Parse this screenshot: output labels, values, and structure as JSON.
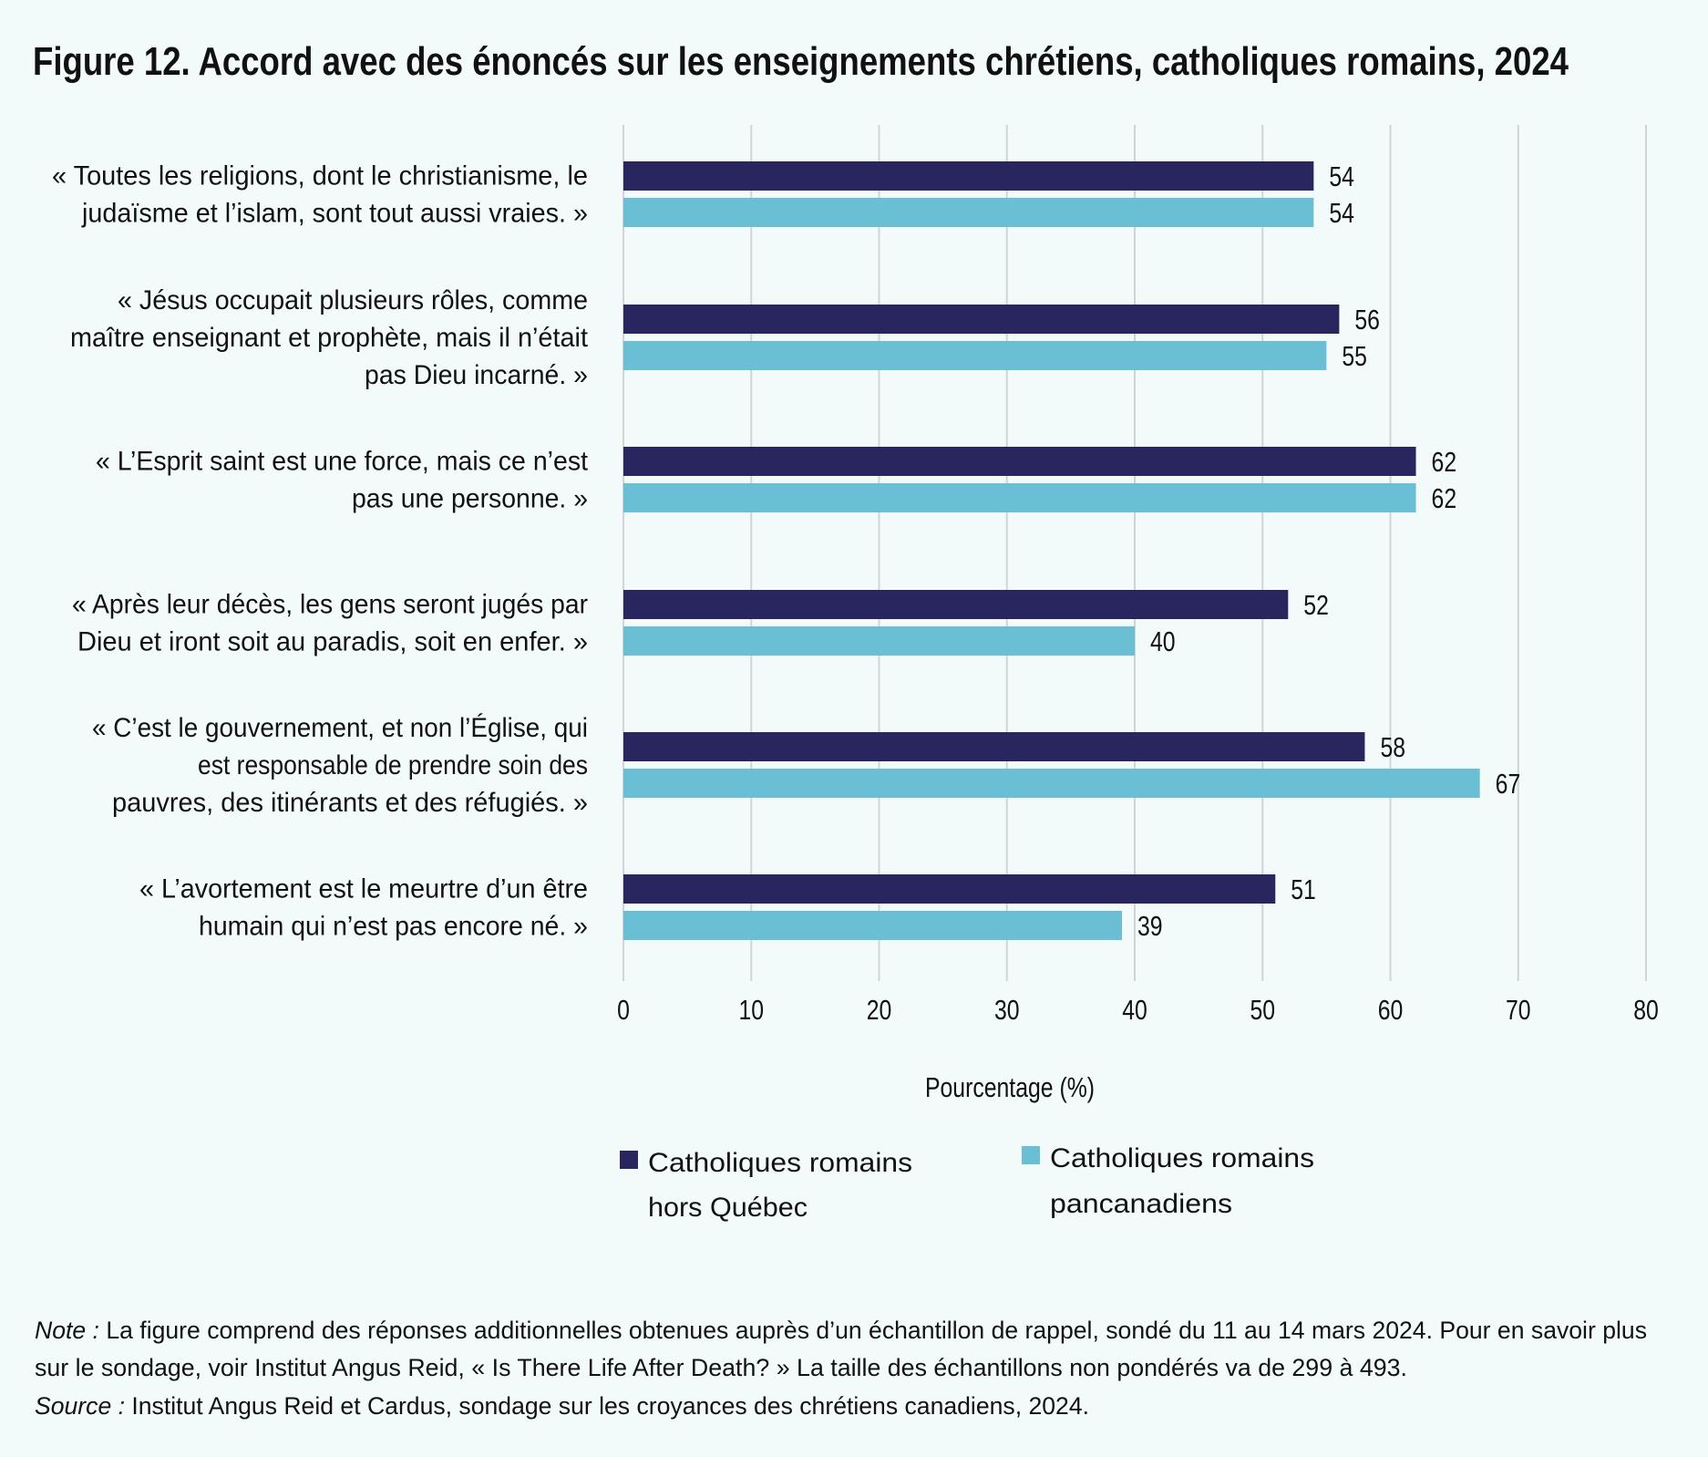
{
  "chart_data": {
    "type": "bar",
    "orientation": "horizontal",
    "title": "Figure 12. Accord avec des énoncés sur les enseignements chrétiens, catholiques romains, 2024",
    "xlabel": "Pourcentage (%)",
    "ylabel": "",
    "xlim": [
      0,
      80
    ],
    "xticks": [
      "0",
      "10",
      "20",
      "30",
      "40",
      "50",
      "60",
      "70",
      "80"
    ],
    "grid": "vertical",
    "legend_placement": "bottom",
    "categories": [
      [
        "« Toutes les religions, dont le christianisme, le",
        "judaïsme et l’islam, sont tout aussi vraies. »"
      ],
      [
        "« Jésus occupait plusieurs rôles, comme",
        "maître enseignant et prophète, mais il n’était",
        "pas Dieu incarné. »"
      ],
      [
        "« L’Esprit saint est une force, mais ce n’est",
        "pas une personne. »"
      ],
      [
        "« Après leur décès, les gens seront jugés par",
        "Dieu et iront soit au paradis, soit en enfer. »"
      ],
      [
        "« C’est le gouvernement, et non l’Église, qui",
        "est responsable de prendre soin des",
        "pauvres, des itinérants et des réfugiés. »"
      ],
      [
        "« L’avortement est le meurtre d’un être",
        "humain qui n’est pas encore né. »"
      ]
    ],
    "series": [
      {
        "name": [
          "Catholiques romains",
          "hors Québec"
        ],
        "color": "#29265f",
        "values": [
          54,
          56,
          62,
          52,
          58,
          51
        ]
      },
      {
        "name": [
          "Catholiques romains",
          "pancanadiens"
        ],
        "color": "#6bbfd5",
        "values": [
          54,
          55,
          62,
          40,
          67,
          39
        ]
      }
    ]
  },
  "notes": {
    "note_label": "Note :",
    "note_line1": " La figure comprend des réponses additionnelles obtenues auprès d’un échantillon de rappel, sondé du 11 au 14 mars 2024. Pour en savoir plus",
    "note_line2": "sur le sondage, voir Institut Angus Reid, « Is There Life After Death? » La taille des échantillons non pondérés va de 299 à 493.",
    "source_label": "Source :",
    "source_text": " Institut Angus Reid et Cardus, sondage sur les croyances des chrétiens canadiens, 2024."
  },
  "colors": {
    "background": "#f3fbfa",
    "grid": "#d0d4d6"
  }
}
